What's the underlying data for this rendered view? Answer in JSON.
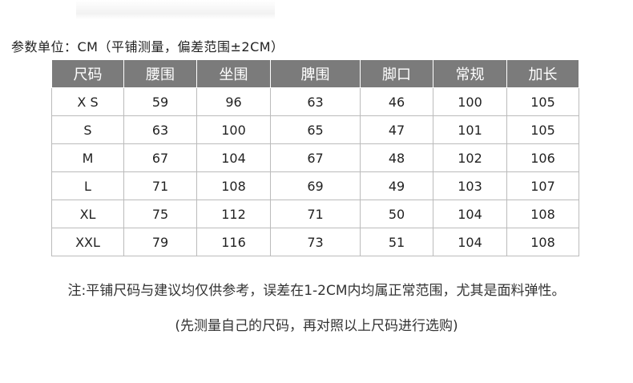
{
  "unit_label": "参数单位：CM（平铺测量，偏差范围±2CM）",
  "table": {
    "headers": [
      "尺码",
      "腰围",
      "坐围",
      "脾围",
      "脚口",
      "常规",
      "加长"
    ],
    "rows": [
      [
        "X S",
        "59",
        "96",
        "63",
        "46",
        "100",
        "105"
      ],
      [
        "S",
        "63",
        "100",
        "65",
        "47",
        "101",
        "105"
      ],
      [
        "M",
        "67",
        "104",
        "67",
        "48",
        "102",
        "106"
      ],
      [
        "L",
        "71",
        "108",
        "69",
        "49",
        "103",
        "107"
      ],
      [
        "XL",
        "75",
        "112",
        "71",
        "50",
        "104",
        "108"
      ],
      [
        "XXL",
        "79",
        "116",
        "73",
        "51",
        "104",
        "108"
      ]
    ]
  },
  "notes": {
    "line1": "注:平铺尺码与建议均仅供参考，误差在1-2CM内均属正常范围，尤其是面料弹性。",
    "line2": "(先测量自己的尺码，再对照以上尺码进行选购)"
  }
}
